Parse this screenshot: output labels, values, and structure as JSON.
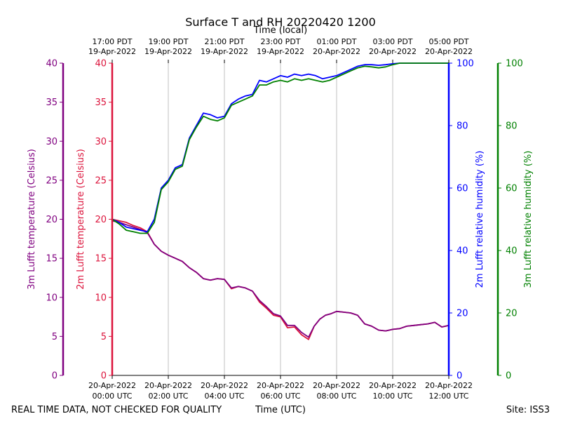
{
  "chart_data": {
    "type": "line",
    "title": "Surface T and RH 20220420 1200",
    "top_axis_label": "Time (local)",
    "xlabel": "Time (UTC)",
    "footer_left": "REAL TIME DATA, NOT CHECKED FOR QUALITY",
    "footer_right": "Site: ISS3",
    "x_range_hours": [
      0,
      12
    ],
    "bottom_ticks": [
      {
        "hour": 0,
        "line1": "20-Apr-2022",
        "line2": "00:00 UTC"
      },
      {
        "hour": 2,
        "line1": "20-Apr-2022",
        "line2": "02:00 UTC"
      },
      {
        "hour": 4,
        "line1": "20-Apr-2022",
        "line2": "04:00 UTC"
      },
      {
        "hour": 6,
        "line1": "20-Apr-2022",
        "line2": "06:00 UTC"
      },
      {
        "hour": 8,
        "line1": "20-Apr-2022",
        "line2": "08:00 UTC"
      },
      {
        "hour": 10,
        "line1": "20-Apr-2022",
        "line2": "10:00 UTC"
      },
      {
        "hour": 12,
        "line1": "20-Apr-2022",
        "line2": "12:00 UTC"
      }
    ],
    "top_ticks": [
      {
        "hour": 0,
        "line1": "17:00 PDT",
        "line2": "19-Apr-2022"
      },
      {
        "hour": 2,
        "line1": "19:00 PDT",
        "line2": "19-Apr-2022"
      },
      {
        "hour": 4,
        "line1": "21:00 PDT",
        "line2": "19-Apr-2022"
      },
      {
        "hour": 6,
        "line1": "23:00 PDT",
        "line2": "19-Apr-2022"
      },
      {
        "hour": 8,
        "line1": "01:00 PDT",
        "line2": "20-Apr-2022"
      },
      {
        "hour": 10,
        "line1": "03:00 PDT",
        "line2": "20-Apr-2022"
      },
      {
        "hour": 12,
        "line1": "05:00 PDT",
        "line2": "20-Apr-2022"
      }
    ],
    "axes": [
      {
        "id": "t3",
        "label": "3m Lufft temperature (Celsius)",
        "color": "#800080",
        "ylim": [
          0,
          40
        ],
        "ticks": [
          0,
          5,
          10,
          15,
          20,
          25,
          30,
          35,
          40
        ]
      },
      {
        "id": "t2",
        "label": "2m Lufft temperature (Celsius)",
        "color": "#dc143c",
        "ylim": [
          0,
          40
        ],
        "ticks": [
          0,
          5,
          10,
          15,
          20,
          25,
          30,
          35,
          40
        ]
      },
      {
        "id": "rh2",
        "label": "2m Lufft relative humidity (%)",
        "color": "#0000ff",
        "ylim": [
          0,
          100
        ],
        "ticks": [
          0,
          20,
          40,
          60,
          80,
          100
        ]
      },
      {
        "id": "rh3",
        "label": "3m Lufft relative humidity (%)",
        "color": "#008000",
        "ylim": [
          0,
          100
        ],
        "ticks": [
          0,
          20,
          40,
          60,
          80,
          100
        ]
      }
    ],
    "series": [
      {
        "name": "2m Lufft temperature",
        "axis": "t2",
        "color": "#dc143c",
        "x": [
          0,
          0.25,
          0.5,
          0.75,
          1.0,
          1.25,
          1.5,
          1.75,
          2.0,
          2.25,
          2.5,
          2.75,
          3.0,
          3.25,
          3.5,
          3.75,
          4.0,
          4.25,
          4.5,
          4.75,
          5.0,
          5.25,
          5.5,
          5.75,
          6.0,
          6.25,
          6.5,
          6.75,
          7.0,
          7.2,
          7.4,
          7.6,
          7.8,
          8.0,
          8.25,
          8.5,
          8.75,
          9.0,
          9.25,
          9.5,
          9.75,
          10.0,
          10.25,
          10.5,
          10.75,
          11.0,
          11.25,
          11.5,
          11.75,
          12.0
        ],
        "values": [
          20.0,
          19.8,
          19.6,
          19.2,
          18.9,
          18.4,
          16.8,
          15.9,
          15.4,
          15.0,
          14.6,
          13.8,
          13.2,
          12.4,
          12.2,
          12.4,
          12.3,
          11.1,
          11.4,
          11.2,
          10.8,
          9.4,
          8.6,
          7.7,
          7.5,
          6.1,
          6.2,
          5.2,
          4.6,
          6.3,
          7.2,
          7.7,
          7.9,
          8.2,
          8.1,
          8.0,
          7.7,
          6.6,
          6.3,
          5.8,
          5.7,
          5.9,
          6.0,
          6.3,
          6.4,
          6.5,
          6.6,
          6.8,
          6.2,
          6.4
        ]
      },
      {
        "name": "3m Lufft temperature",
        "axis": "t3",
        "color": "#800080",
        "x": [
          0,
          0.25,
          0.5,
          0.75,
          1.0,
          1.25,
          1.5,
          1.75,
          2.0,
          2.25,
          2.5,
          2.75,
          3.0,
          3.25,
          3.5,
          3.75,
          4.0,
          4.25,
          4.5,
          4.75,
          5.0,
          5.25,
          5.5,
          5.75,
          6.0,
          6.25,
          6.5,
          6.75,
          7.0,
          7.2,
          7.4,
          7.6,
          7.8,
          8.0,
          8.25,
          8.5,
          8.75,
          9.0,
          9.25,
          9.5,
          9.75,
          10.0,
          10.25,
          10.5,
          10.75,
          11.0,
          11.25,
          11.5,
          11.75,
          12.0
        ],
        "values": [
          19.8,
          19.6,
          19.3,
          19.0,
          18.7,
          18.3,
          16.8,
          15.9,
          15.4,
          15.0,
          14.6,
          13.8,
          13.2,
          12.4,
          12.2,
          12.4,
          12.3,
          11.2,
          11.4,
          11.2,
          10.8,
          9.6,
          8.8,
          7.9,
          7.6,
          6.4,
          6.4,
          5.5,
          4.9,
          6.3,
          7.2,
          7.7,
          7.9,
          8.2,
          8.1,
          8.0,
          7.7,
          6.6,
          6.3,
          5.8,
          5.7,
          5.9,
          6.0,
          6.3,
          6.4,
          6.5,
          6.6,
          6.8,
          6.2,
          6.4
        ]
      },
      {
        "name": "2m Lufft relative humidity",
        "axis": "rh2",
        "color": "#0000ff",
        "x": [
          0,
          0.25,
          0.5,
          0.75,
          1.0,
          1.25,
          1.5,
          1.75,
          2.0,
          2.25,
          2.5,
          2.75,
          3.0,
          3.25,
          3.5,
          3.75,
          4.0,
          4.25,
          4.5,
          4.75,
          5.0,
          5.25,
          5.5,
          5.75,
          6.0,
          6.25,
          6.5,
          6.75,
          7.0,
          7.25,
          7.5,
          7.75,
          8.0,
          8.25,
          8.5,
          8.75,
          9.0,
          9.25,
          9.5,
          9.75,
          10.0,
          10.25,
          10.5,
          10.75,
          11.0,
          11.5,
          12.0
        ],
        "values": [
          50.0,
          49.0,
          47.5,
          47.0,
          46.5,
          46.0,
          50.0,
          60.0,
          62.5,
          66.5,
          67.5,
          76.0,
          80.0,
          84.0,
          83.5,
          82.5,
          83.0,
          87.0,
          88.5,
          89.5,
          90.0,
          94.5,
          94.0,
          95.0,
          96.0,
          95.5,
          96.5,
          96.0,
          96.5,
          96.0,
          95.0,
          95.5,
          96.0,
          97.0,
          98.0,
          99.0,
          99.5,
          99.5,
          99.3,
          99.5,
          99.8,
          100.0,
          100.0,
          100.0,
          100.0,
          100.0,
          100.0
        ]
      },
      {
        "name": "3m Lufft relative humidity",
        "axis": "rh3",
        "color": "#008000",
        "x": [
          0,
          0.25,
          0.5,
          0.75,
          1.0,
          1.25,
          1.5,
          1.75,
          2.0,
          2.25,
          2.5,
          2.75,
          3.0,
          3.25,
          3.5,
          3.75,
          4.0,
          4.25,
          4.5,
          4.75,
          5.0,
          5.25,
          5.5,
          5.75,
          6.0,
          6.25,
          6.5,
          6.75,
          7.0,
          7.25,
          7.5,
          7.75,
          8.0,
          8.25,
          8.5,
          8.75,
          9.0,
          9.25,
          9.5,
          9.75,
          10.0,
          10.25,
          10.5,
          10.75,
          11.0,
          11.5,
          12.0
        ],
        "values": [
          50.0,
          48.5,
          46.5,
          46.0,
          45.5,
          45.5,
          49.0,
          59.5,
          62.0,
          66.0,
          67.0,
          75.5,
          79.5,
          83.0,
          82.0,
          81.5,
          82.5,
          86.5,
          87.5,
          88.5,
          89.5,
          93.0,
          93.0,
          94.0,
          94.5,
          94.0,
          95.0,
          94.5,
          95.0,
          94.5,
          94.0,
          94.5,
          95.5,
          96.5,
          97.5,
          98.5,
          99.0,
          98.8,
          98.5,
          98.8,
          99.5,
          100.0,
          100.0,
          100.0,
          100.0,
          100.0,
          100.0
        ]
      }
    ]
  }
}
